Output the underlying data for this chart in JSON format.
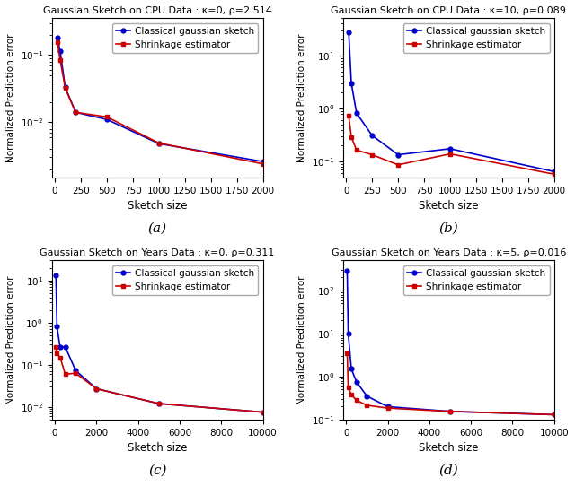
{
  "subplots": [
    {
      "title": "Gaussian Sketch on CPU Data : κ=0, ρ=2.514",
      "xlabel": "Sketch size",
      "ylabel": "Normalized Prediction error",
      "label_bottom": "(a)",
      "xlim": [
        -30,
        2000
      ],
      "xticks": [
        0,
        250,
        500,
        750,
        1000,
        1250,
        1500,
        1750,
        2000
      ],
      "ylim": [
        0.0015,
        0.35
      ],
      "blue_x": [
        25,
        50,
        100,
        200,
        500,
        1000,
        2000
      ],
      "blue_y": [
        0.18,
        0.115,
        0.033,
        0.014,
        0.011,
        0.0048,
        0.0026
      ],
      "red_x": [
        25,
        50,
        100,
        200,
        500,
        1000,
        2000
      ],
      "red_y": [
        0.155,
        0.085,
        0.032,
        0.014,
        0.012,
        0.0049,
        0.0024
      ]
    },
    {
      "title": "Gaussian Sketch on CPU Data : κ=10, ρ=0.089",
      "xlabel": "Sketch size",
      "ylabel": "Normalized Prediction error",
      "label_bottom": "(b)",
      "xlim": [
        -30,
        2000
      ],
      "xticks": [
        0,
        250,
        500,
        750,
        1000,
        1250,
        1500,
        1750,
        2000
      ],
      "ylim": [
        0.05,
        50.0
      ],
      "blue_x": [
        25,
        50,
        100,
        250,
        500,
        1000,
        2000
      ],
      "blue_y": [
        27.0,
        3.0,
        0.82,
        0.31,
        0.135,
        0.175,
        0.065
      ],
      "red_x": [
        25,
        50,
        100,
        250,
        500,
        1000,
        2000
      ],
      "red_y": [
        0.72,
        0.29,
        0.165,
        0.135,
        0.087,
        0.14,
        0.058
      ]
    },
    {
      "title": "Gaussian Sketch on Years Data : κ=0, ρ=0.311",
      "xlabel": "Sketch size",
      "ylabel": "Normalized Prediction error",
      "label_bottom": "(c)",
      "xlim": [
        -150,
        10000
      ],
      "xticks": [
        0,
        2000,
        4000,
        6000,
        8000,
        10000
      ],
      "ylim": [
        0.005,
        30.0
      ],
      "blue_x": [
        50,
        100,
        250,
        500,
        1000,
        2000,
        5000,
        10000
      ],
      "blue_y": [
        13.5,
        0.82,
        0.26,
        0.265,
        0.073,
        0.027,
        0.012,
        0.0075
      ],
      "red_x": [
        50,
        100,
        250,
        500,
        1000,
        2000,
        5000,
        10000
      ],
      "red_y": [
        0.265,
        0.185,
        0.15,
        0.06,
        0.063,
        0.027,
        0.012,
        0.0075
      ]
    },
    {
      "title": "Gaussian Sketch on Years Data : κ=5, ρ=0.016",
      "xlabel": "Sketch size",
      "ylabel": "Normalized Prediction error",
      "label_bottom": "(d)",
      "xlim": [
        -150,
        10000
      ],
      "xticks": [
        0,
        2000,
        4000,
        6000,
        8000,
        10000
      ],
      "ylim": [
        0.1,
        500.0
      ],
      "blue_x": [
        50,
        100,
        250,
        500,
        1000,
        2000,
        5000,
        10000
      ],
      "blue_y": [
        280.0,
        10.0,
        1.5,
        0.75,
        0.35,
        0.2,
        0.155,
        0.13
      ],
      "red_x": [
        50,
        100,
        250,
        500,
        1000,
        2000,
        5000,
        10000
      ],
      "red_y": [
        3.5,
        0.55,
        0.38,
        0.28,
        0.215,
        0.185,
        0.155,
        0.13
      ]
    }
  ],
  "blue_color": "#0000cc",
  "red_color": "#cc0000",
  "legend_labels": [
    "Classical gaussian sketch",
    "Shrinkage estimator"
  ],
  "figsize": [
    6.4,
    5.42
  ],
  "dpi": 100
}
